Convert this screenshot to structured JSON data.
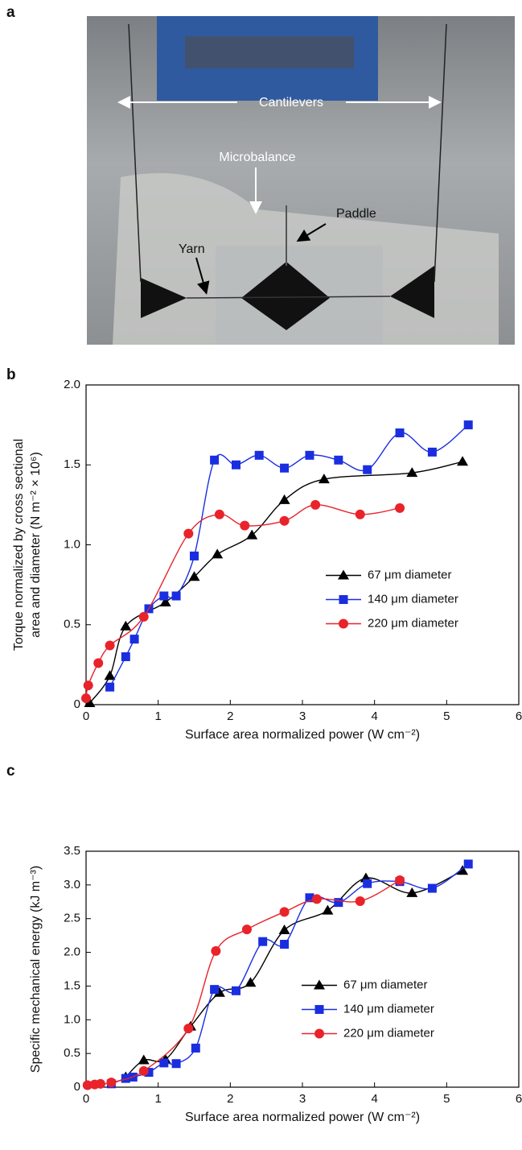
{
  "panel_labels": [
    "a",
    "b",
    "c"
  ],
  "photo": {
    "labels": [
      "Cantilevers",
      "Microbalance",
      "Paddle",
      "Yarn"
    ]
  },
  "chart_data": [
    {
      "type": "line",
      "xlabel": "Surface area normalized power (W cm⁻²)",
      "ylabel": [
        "Torque normalized by cross sectional",
        "area and diameter (N m⁻² × 10⁶)"
      ],
      "xlim": [
        0,
        6
      ],
      "xticks": [
        0,
        1,
        2,
        3,
        4,
        5,
        6
      ],
      "ylim": [
        0,
        2
      ],
      "yticks": [
        0,
        0.5,
        {
          "value": 1,
          "label": "1.0"
        },
        1.5,
        {
          "value": 2,
          "label": "2.0"
        }
      ],
      "legend": "center-right",
      "series": [
        {
          "name": "67 μm diameter",
          "color": "#000000",
          "marker": "triangle",
          "x": [
            0.05,
            0.33,
            0.55,
            1.1,
            1.5,
            1.82,
            2.3,
            2.75,
            3.3,
            4.52,
            5.22
          ],
          "values": [
            0.01,
            0.18,
            0.49,
            0.64,
            0.8,
            0.94,
            1.06,
            1.28,
            1.41,
            1.45,
            1.52
          ]
        },
        {
          "name": "140 μm diameter",
          "color": "#1a2ee0",
          "marker": "square",
          "x": [
            0.33,
            0.55,
            0.67,
            0.87,
            1.08,
            1.25,
            1.5,
            1.78,
            2.08,
            2.4,
            2.75,
            3.1,
            3.5,
            3.9,
            4.35,
            4.8,
            5.3
          ],
          "values": [
            0.11,
            0.3,
            0.41,
            0.6,
            0.68,
            0.68,
            0.93,
            1.53,
            1.5,
            1.56,
            1.48,
            1.56,
            1.53,
            1.47,
            1.7,
            1.58,
            1.75
          ]
        },
        {
          "name": "220 μm diameter",
          "color": "#e8232a",
          "marker": "circle",
          "x": [
            0.0,
            0.03,
            0.17,
            0.33,
            0.8,
            1.42,
            1.85,
            2.2,
            2.75,
            3.18,
            3.8,
            4.35
          ],
          "values": [
            0.04,
            0.12,
            0.26,
            0.37,
            0.55,
            1.07,
            1.19,
            1.12,
            1.15,
            1.25,
            1.19,
            1.23
          ]
        }
      ]
    },
    {
      "type": "line",
      "xlabel": "Surface area normalized power (W cm⁻²)",
      "ylabel": [
        "Specific mechanical energy (kJ m⁻³)"
      ],
      "xlim": [
        0,
        6
      ],
      "xticks": [
        0,
        1,
        2,
        3,
        4,
        5,
        6
      ],
      "ylim": [
        0,
        3.5
      ],
      "yticks": [
        0,
        0.5,
        {
          "value": 1,
          "label": "1.0"
        },
        1.5,
        {
          "value": 2,
          "label": "2.0"
        },
        2.5,
        {
          "value": 3,
          "label": "3.0"
        },
        3.5
      ],
      "legend": "center-right",
      "series": [
        {
          "name": "67 μm diameter",
          "color": "#000000",
          "marker": "triangle",
          "x": [
            0.55,
            0.8,
            1.1,
            1.45,
            1.85,
            2.28,
            2.75,
            3.35,
            3.88,
            4.52,
            5.22
          ],
          "values": [
            0.15,
            0.4,
            0.41,
            0.9,
            1.4,
            1.55,
            2.33,
            2.62,
            3.1,
            2.88,
            3.21
          ]
        },
        {
          "name": "140 μm diameter",
          "color": "#1a2ee0",
          "marker": "square",
          "x": [
            0.35,
            0.55,
            0.65,
            0.87,
            1.08,
            1.25,
            1.52,
            1.78,
            2.08,
            2.45,
            2.75,
            3.1,
            3.5,
            3.9,
            4.35,
            4.8,
            5.3
          ],
          "values": [
            0.05,
            0.13,
            0.15,
            0.22,
            0.36,
            0.35,
            0.58,
            1.45,
            1.43,
            2.16,
            2.12,
            2.81,
            2.74,
            3.02,
            3.05,
            2.95,
            3.31
          ]
        },
        {
          "name": "220 μm diameter",
          "color": "#e8232a",
          "marker": "circle",
          "x": [
            0.02,
            0.12,
            0.2,
            0.35,
            0.8,
            1.42,
            1.8,
            2.23,
            2.75,
            3.2,
            3.8,
            4.35
          ],
          "values": [
            0.03,
            0.04,
            0.05,
            0.07,
            0.24,
            0.87,
            2.02,
            2.34,
            2.6,
            2.79,
            2.76,
            3.07
          ]
        }
      ]
    }
  ]
}
